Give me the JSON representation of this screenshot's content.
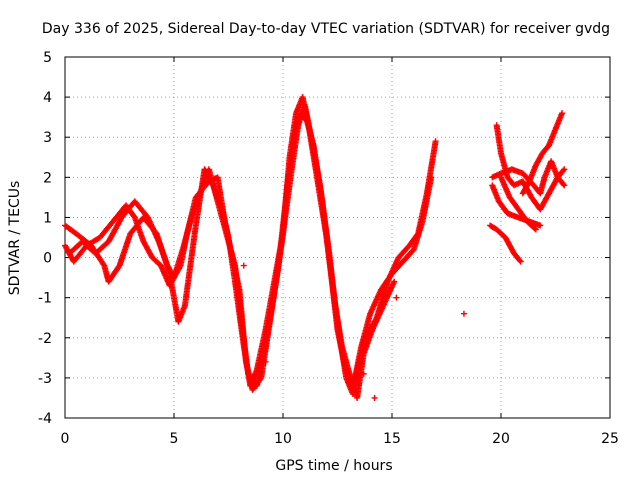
{
  "chart_data": {
    "type": "scatter",
    "title": "Day 336 of 2025, Sidereal Day-to-day VTEC variation (SDTVAR) for receiver gvdg",
    "xlabel": "GPS time / hours",
    "ylabel": "SDTVAR / TECUs",
    "xlim": [
      0,
      25
    ],
    "ylim": [
      -4,
      5
    ],
    "xticks": [
      "0",
      "5",
      "10",
      "15",
      "20",
      "25"
    ],
    "yticks": [
      "-4",
      "-3",
      "-2",
      "-1",
      "0",
      "1",
      "2",
      "3",
      "4",
      "5"
    ],
    "grid": true,
    "legend": "none",
    "marker": "plus",
    "color": "#ff0000",
    "series": [
      {
        "tracks": [
          [
            [
              0.0,
              0.8
            ],
            [
              0.5,
              0.6
            ],
            [
              1.2,
              0.3
            ],
            [
              1.8,
              -0.2
            ],
            [
              2.0,
              -0.6
            ],
            [
              2.5,
              -0.2
            ],
            [
              3.0,
              0.6
            ],
            [
              3.6,
              1.0
            ],
            [
              4.2,
              0.6
            ],
            [
              4.8,
              -0.4
            ],
            [
              5.2,
              -1.6
            ],
            [
              5.5,
              -1.2
            ],
            [
              6.0,
              0.8
            ],
            [
              6.4,
              2.2
            ],
            [
              6.8,
              1.8
            ],
            [
              7.2,
              1.2
            ],
            [
              7.5,
              0.5
            ],
            [
              7.8,
              -0.6
            ],
            [
              8.2,
              -2.2
            ],
            [
              8.5,
              -3.2
            ],
            [
              8.8,
              -2.8
            ],
            [
              9.2,
              -1.8
            ],
            [
              9.6,
              -0.6
            ],
            [
              10.0,
              0.6
            ],
            [
              10.3,
              2.5
            ],
            [
              10.6,
              3.6
            ],
            [
              10.9,
              4.0
            ],
            [
              11.2,
              3.2
            ],
            [
              11.5,
              2.2
            ],
            [
              12.0,
              0.5
            ],
            [
              12.3,
              -0.8
            ],
            [
              12.6,
              -2.0
            ],
            [
              12.9,
              -3.0
            ],
            [
              13.2,
              -3.4
            ],
            [
              13.5,
              -2.6
            ],
            [
              13.8,
              -2.0
            ],
            [
              14.3,
              -1.5
            ],
            [
              14.8,
              -0.6
            ],
            [
              15.3,
              0.0
            ],
            [
              15.8,
              0.3
            ],
            [
              16.2,
              0.6
            ],
            [
              16.6,
              1.6
            ],
            [
              17.0,
              2.9
            ]
          ],
          [
            [
              0.0,
              0.3
            ],
            [
              0.4,
              -0.1
            ],
            [
              1.0,
              0.3
            ],
            [
              1.6,
              0.5
            ],
            [
              2.2,
              0.9
            ],
            [
              2.8,
              1.3
            ],
            [
              3.2,
              1.0
            ],
            [
              3.6,
              0.4
            ],
            [
              4.0,
              0.0
            ],
            [
              4.4,
              -0.2
            ],
            [
              4.8,
              -0.7
            ],
            [
              5.3,
              -0.2
            ],
            [
              5.6,
              0.6
            ],
            [
              6.0,
              1.5
            ],
            [
              6.6,
              1.9
            ],
            [
              7.0,
              2.0
            ],
            [
              7.3,
              1.0
            ],
            [
              7.6,
              0.2
            ],
            [
              8.0,
              -0.8
            ],
            [
              8.3,
              -2.6
            ],
            [
              8.6,
              -3.3
            ],
            [
              9.0,
              -3.0
            ],
            [
              9.4,
              -1.6
            ],
            [
              9.8,
              -0.2
            ],
            [
              10.2,
              1.8
            ],
            [
              10.5,
              3.0
            ],
            [
              10.8,
              3.6
            ],
            [
              11.1,
              3.4
            ],
            [
              11.4,
              2.8
            ],
            [
              11.8,
              1.4
            ],
            [
              12.2,
              -0.4
            ],
            [
              12.5,
              -1.8
            ],
            [
              12.8,
              -2.6
            ],
            [
              13.1,
              -3.2
            ],
            [
              13.3,
              -3.0
            ],
            [
              13.6,
              -2.2
            ],
            [
              14.0,
              -1.4
            ],
            [
              14.5,
              -0.8
            ],
            [
              15.0,
              -0.4
            ],
            [
              15.5,
              -0.1
            ],
            [
              16.0,
              0.2
            ],
            [
              16.4,
              0.9
            ],
            [
              16.8,
              2.0
            ]
          ],
          [
            [
              0.2,
              0.1
            ],
            [
              0.8,
              0.4
            ],
            [
              1.4,
              0.1
            ],
            [
              2.0,
              0.4
            ],
            [
              2.6,
              1.0
            ],
            [
              3.2,
              1.4
            ],
            [
              3.8,
              1.0
            ],
            [
              4.3,
              0.4
            ],
            [
              4.7,
              -0.2
            ],
            [
              5.0,
              -0.5
            ],
            [
              5.4,
              0.2
            ],
            [
              5.8,
              1.0
            ],
            [
              6.2,
              1.6
            ],
            [
              6.6,
              2.2
            ],
            [
              7.0,
              1.4
            ],
            [
              7.4,
              0.6
            ],
            [
              7.8,
              -0.2
            ],
            [
              8.1,
              -1.6
            ],
            [
              8.4,
              -2.9
            ],
            [
              8.8,
              -3.2
            ],
            [
              9.1,
              -2.4
            ],
            [
              9.5,
              -1.2
            ],
            [
              9.9,
              0.2
            ],
            [
              10.4,
              2.2
            ],
            [
              10.7,
              3.3
            ],
            [
              11.0,
              3.8
            ],
            [
              11.3,
              3.0
            ],
            [
              11.7,
              1.8
            ],
            [
              12.1,
              0.2
            ],
            [
              12.4,
              -1.2
            ],
            [
              12.7,
              -2.2
            ],
            [
              13.0,
              -2.8
            ],
            [
              13.4,
              -3.5
            ],
            [
              13.7,
              -2.4
            ],
            [
              14.1,
              -1.8
            ],
            [
              14.6,
              -1.2
            ],
            [
              15.1,
              -0.6
            ]
          ],
          [
            [
              19.6,
              2.0
            ],
            [
              20.0,
              2.1
            ],
            [
              20.5,
              2.2
            ],
            [
              21.0,
              2.1
            ],
            [
              21.5,
              1.8
            ],
            [
              21.8,
              1.6
            ],
            [
              22.0,
              2.0
            ],
            [
              22.3,
              2.4
            ],
            [
              22.6,
              2.0
            ],
            [
              22.9,
              1.8
            ]
          ],
          [
            [
              19.6,
              1.8
            ],
            [
              19.9,
              1.4
            ],
            [
              20.3,
              1.1
            ],
            [
              20.8,
              1.0
            ],
            [
              21.3,
              0.9
            ],
            [
              21.8,
              0.8
            ]
          ],
          [
            [
              19.5,
              0.8
            ],
            [
              19.8,
              0.7
            ],
            [
              20.2,
              0.5
            ],
            [
              20.6,
              0.1
            ],
            [
              20.9,
              -0.1
            ]
          ],
          [
            [
              19.8,
              3.3
            ],
            [
              20.0,
              2.6
            ],
            [
              20.3,
              2.0
            ],
            [
              20.6,
              1.8
            ],
            [
              21.0,
              1.9
            ],
            [
              21.4,
              1.5
            ],
            [
              21.8,
              1.2
            ],
            [
              22.2,
              1.6
            ],
            [
              22.6,
              2.0
            ],
            [
              22.9,
              2.2
            ]
          ],
          [
            [
              21.0,
              1.6
            ],
            [
              21.3,
              1.9
            ],
            [
              21.6,
              2.3
            ],
            [
              21.9,
              2.6
            ],
            [
              22.2,
              2.8
            ],
            [
              22.5,
              3.2
            ],
            [
              22.8,
              3.6
            ]
          ],
          [
            [
              20.0,
              2.0
            ],
            [
              20.4,
              1.5
            ],
            [
              20.8,
              1.2
            ],
            [
              21.2,
              0.9
            ],
            [
              21.6,
              0.7
            ]
          ]
        ],
        "points": [
          [
            14.2,
            -3.5
          ],
          [
            15.2,
            -1.0
          ],
          [
            8.2,
            -0.2
          ],
          [
            7.8,
            -0.3
          ],
          [
            9.2,
            -2.6
          ],
          [
            13.7,
            -2.9
          ],
          [
            18.3,
            -1.4
          ]
        ]
      }
    ]
  }
}
